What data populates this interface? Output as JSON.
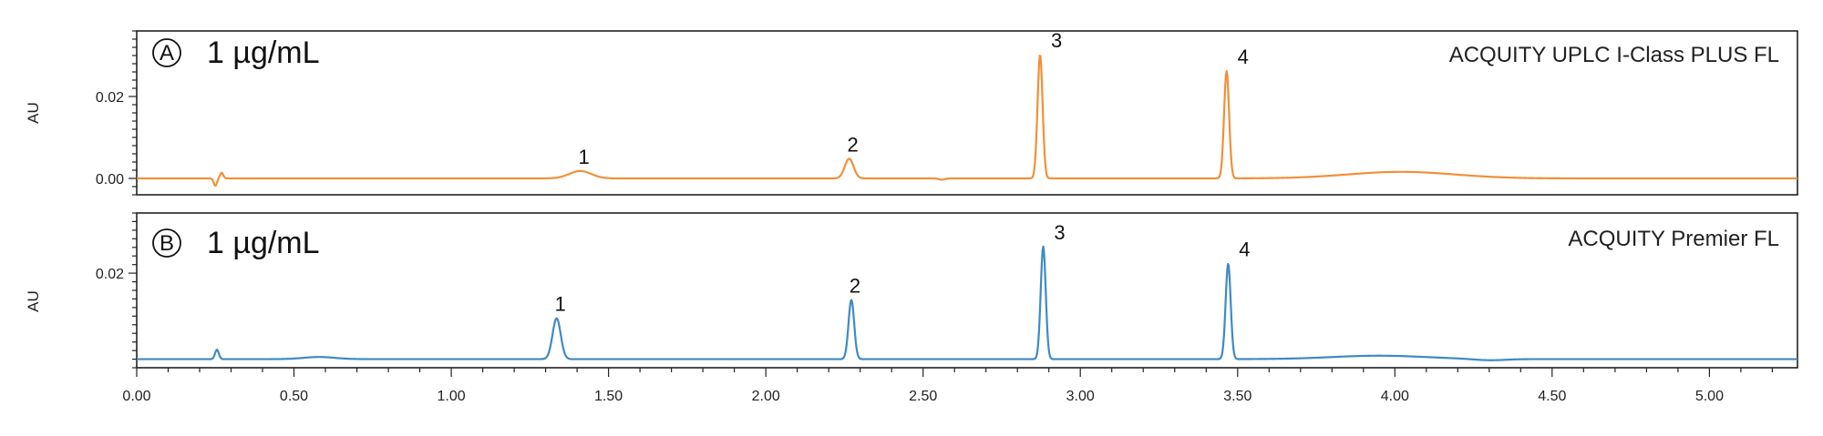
{
  "colors": {
    "panel_a": "#F0903A",
    "panel_b": "#3E8AC4",
    "frame": "#222222",
    "text": "#111111"
  },
  "chart_data": {
    "type": "line",
    "x_axis": {
      "xlim": [
        0.0,
        5.28
      ],
      "tick_values": [
        0.0,
        0.5,
        1.0,
        1.5,
        2.0,
        2.5,
        3.0,
        3.5,
        4.0,
        4.5,
        5.0
      ],
      "tick_labels": [
        "0.00",
        "0.50",
        "1.00",
        "1.50",
        "2.00",
        "2.50",
        "3.00",
        "3.50",
        "4.00",
        "4.50",
        "5.00"
      ]
    },
    "panels": [
      {
        "id": "A",
        "letter": "A",
        "concentration": "1 µg/mL",
        "instrument": "ACQUITY UPLC I-Class PLUS FL",
        "ylabel": "AU",
        "ylim": [
          -0.004,
          0.036
        ],
        "ytick_values": [
          0.0,
          0.02
        ],
        "ytick_labels": [
          "0.00",
          "0.02"
        ],
        "baseline": 0.0,
        "peaks": [
          {
            "label": "1",
            "rt": 1.41,
            "height": 0.0018,
            "width": 0.035
          },
          {
            "label": "2",
            "rt": 2.265,
            "height": 0.0048,
            "width": 0.014
          },
          {
            "label": "3",
            "rt": 2.872,
            "height": 0.0302,
            "width": 0.008
          },
          {
            "label": "4",
            "rt": 3.465,
            "height": 0.0262,
            "width": 0.008
          }
        ],
        "minor_features": [
          {
            "rt": 0.25,
            "height": -0.0018,
            "width": 0.005
          },
          {
            "rt": 0.27,
            "height": 0.0014,
            "width": 0.005
          },
          {
            "rt": 2.56,
            "height": -0.0003,
            "width": 0.01
          },
          {
            "rt": 4.02,
            "height": 0.0016,
            "width": 0.17
          }
        ]
      },
      {
        "id": "B",
        "letter": "B",
        "concentration": "1 µg/mL",
        "instrument": "ACQUITY Premier FL",
        "ylabel": "AU",
        "ylim": [
          -0.002,
          0.034
        ],
        "ytick_values": [
          0.02
        ],
        "ytick_labels": [
          "0.02"
        ],
        "baseline": 0.0,
        "peaks": [
          {
            "label": "1",
            "rt": 1.335,
            "height": 0.0095,
            "width": 0.013
          },
          {
            "label": "2",
            "rt": 2.272,
            "height": 0.0138,
            "width": 0.009
          },
          {
            "label": "3",
            "rt": 2.882,
            "height": 0.0262,
            "width": 0.008
          },
          {
            "label": "4",
            "rt": 3.47,
            "height": 0.0222,
            "width": 0.008
          }
        ],
        "minor_features": [
          {
            "rt": 0.255,
            "height": 0.0022,
            "width": 0.006
          },
          {
            "rt": 0.58,
            "height": 0.0005,
            "width": 0.05
          },
          {
            "rt": 3.95,
            "height": 0.0008,
            "width": 0.15
          },
          {
            "rt": 4.3,
            "height": -0.0003,
            "width": 0.05
          }
        ]
      }
    ]
  }
}
